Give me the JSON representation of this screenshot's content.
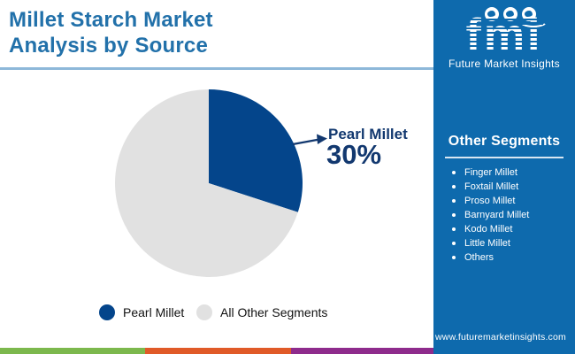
{
  "header": {
    "title_line1": "Millet Starch Market",
    "title_line2": "Analysis by Source"
  },
  "logo": {
    "monogram": "fmi",
    "company": "Future Market Insights"
  },
  "side_panel": {
    "heading": "Other Segments",
    "items": [
      "Finger Millet",
      "Foxtail Millet",
      "Proso Millet",
      "Barnyard Millet",
      "Kodo Millet",
      "Little Millet",
      "Others"
    ],
    "website": "www.futuremarketinsights.com"
  },
  "chart_data": {
    "type": "pie",
    "title": "Millet Starch Market Analysis by Source",
    "slices": [
      {
        "label": "Pearl Millet",
        "value": 30,
        "color": "#04458b"
      },
      {
        "label": "All Other Segments",
        "value": 70,
        "color": "#e1e1e1"
      }
    ],
    "callout": {
      "label": "Pearl Millet",
      "value_text": "30%"
    },
    "legend_position": "bottom",
    "start_angle": "top",
    "direction": "clockwise"
  },
  "colors": {
    "title_blue": "#2271aa",
    "panel_blue": "#0e6aad",
    "slice_navy": "#04458b",
    "slice_gray": "#e1e1e1",
    "callout_navy": "#12386f",
    "underline_blue": "#8db8d9",
    "footer_green": "#7cb84d",
    "footer_orange": "#e05a28",
    "footer_purple": "#8e2b8c"
  }
}
